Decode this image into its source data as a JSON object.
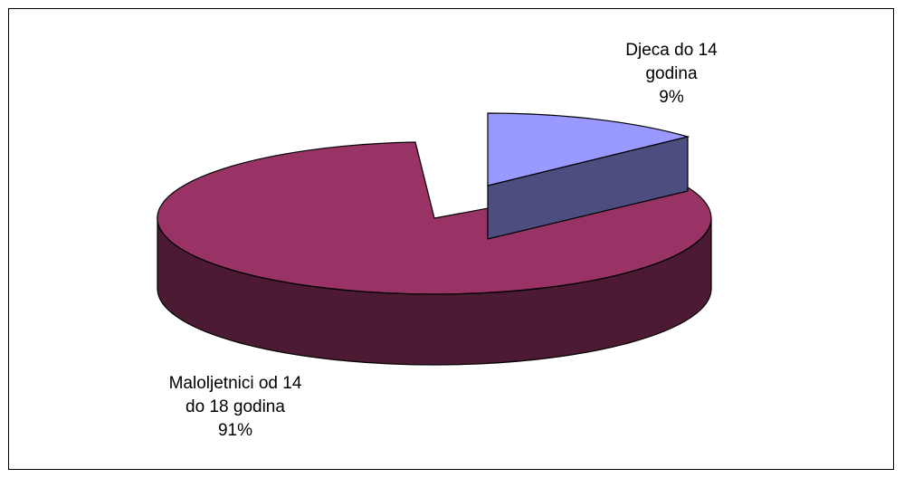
{
  "chart_data": {
    "type": "pie",
    "variant": "3d-exploded",
    "title": "",
    "slices": [
      {
        "label_lines": [
          "Djeca do 14",
          "godina"
        ],
        "percent_label": "9%",
        "value": 9,
        "top_color": "#9999ff",
        "side_color": "#4d4d80"
      },
      {
        "label_lines": [
          "Maloljetnici od 14",
          "do 18 godina"
        ],
        "percent_label": "91%",
        "value": 91,
        "top_color": "#993366",
        "side_color": "#4d1a33"
      }
    ],
    "legend": "none"
  }
}
